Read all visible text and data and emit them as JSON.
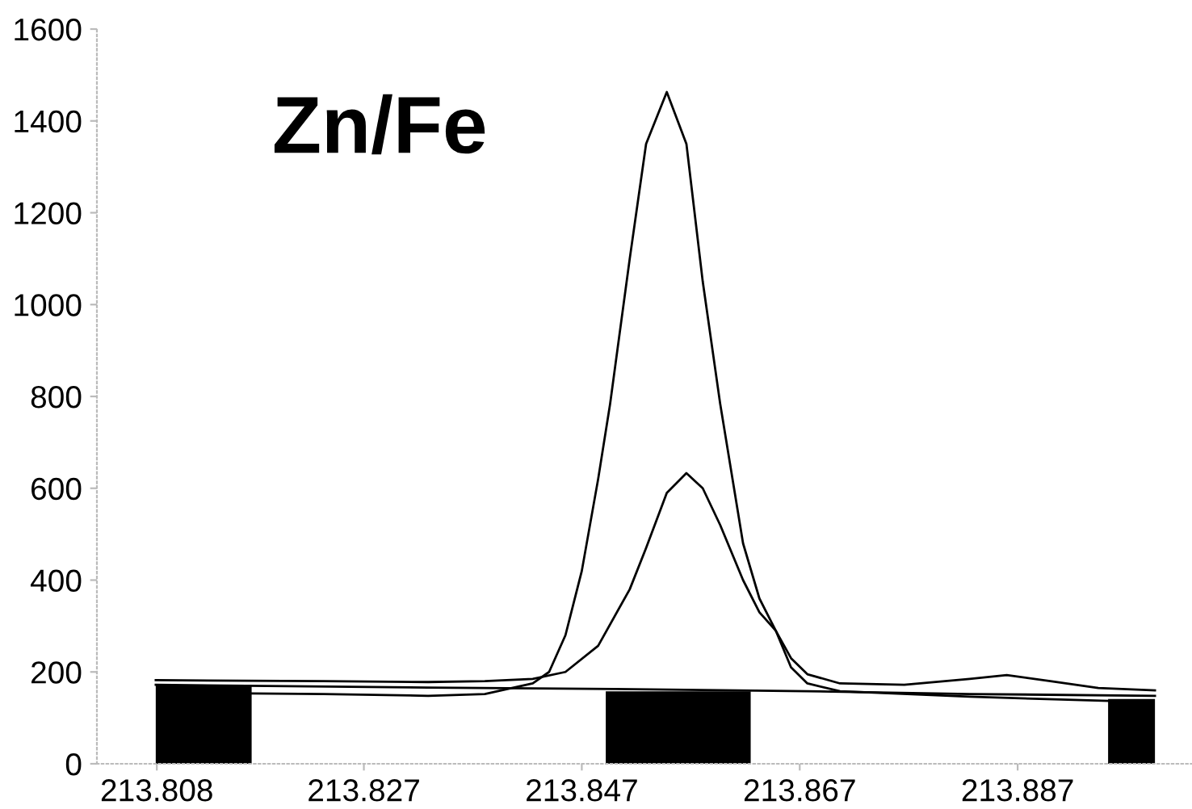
{
  "chart_data": {
    "type": "line",
    "title": "Zn/Fe",
    "xlim": [
      213.8025,
      213.903
    ],
    "xticks": [
      213.808,
      213.827,
      213.847,
      213.867,
      213.887
    ],
    "ylim": [
      0,
      1600
    ],
    "yticks": [
      0,
      200,
      400,
      600,
      800,
      1000,
      1200,
      1400,
      1600
    ],
    "grid": false,
    "marker": "none",
    "line_style": "solid",
    "series": [
      {
        "type": "area",
        "color": "#000000",
        "x": [
          213.8079,
          213.8079,
          213.8167,
          213.8167
        ],
        "values": [
          0,
          172,
          172,
          0
        ]
      },
      {
        "type": "area",
        "color": "#000000",
        "x": [
          213.8492,
          213.8492,
          213.8625,
          213.8625
        ],
        "values": [
          0,
          158,
          158,
          0
        ]
      },
      {
        "type": "area",
        "color": "#000000",
        "x": [
          213.8953,
          213.8953,
          213.8996,
          213.8996
        ],
        "values": [
          0,
          141,
          141,
          0
        ]
      },
      {
        "color": "#000000",
        "x": [
          213.8079,
          213.8233,
          213.8329,
          213.8381,
          213.8425,
          213.8455,
          213.8485,
          213.8514,
          213.8529,
          213.8548,
          213.8566,
          213.8581,
          213.8597,
          213.8618,
          213.8633,
          213.8648,
          213.8662,
          213.8677,
          213.8707,
          213.8766,
          213.8826,
          213.886,
          213.89,
          213.8944,
          213.8996
        ],
        "values": [
          182,
          180,
          178,
          180,
          185,
          200,
          257,
          380,
          470,
          590,
          633,
          600,
          520,
          400,
          330,
          290,
          230,
          195,
          175,
          172,
          185,
          193,
          180,
          165,
          160
        ]
      },
      {
        "color": "#000000",
        "x": [
          213.8079,
          213.8329,
          213.8499,
          213.8677,
          213.8826,
          213.8996
        ],
        "values": [
          172,
          166,
          163,
          158,
          152,
          148
        ]
      },
      {
        "color": "#000000",
        "x": [
          213.8167,
          213.8233,
          213.8329,
          213.8381,
          213.8425,
          213.844,
          213.8455,
          213.847,
          213.8485,
          213.8496,
          213.8514,
          213.8529,
          213.8548,
          213.8566,
          213.8581,
          213.8597,
          213.8618,
          213.8633,
          213.8648,
          213.8662,
          213.8677,
          213.8707,
          213.8826,
          213.8953
        ],
        "values": [
          153,
          152,
          148,
          152,
          175,
          200,
          280,
          420,
          620,
          784,
          1100,
          1350,
          1463,
          1350,
          1050,
          784,
          480,
          360,
          290,
          210,
          175,
          158,
          146,
          137
        ]
      }
    ]
  }
}
